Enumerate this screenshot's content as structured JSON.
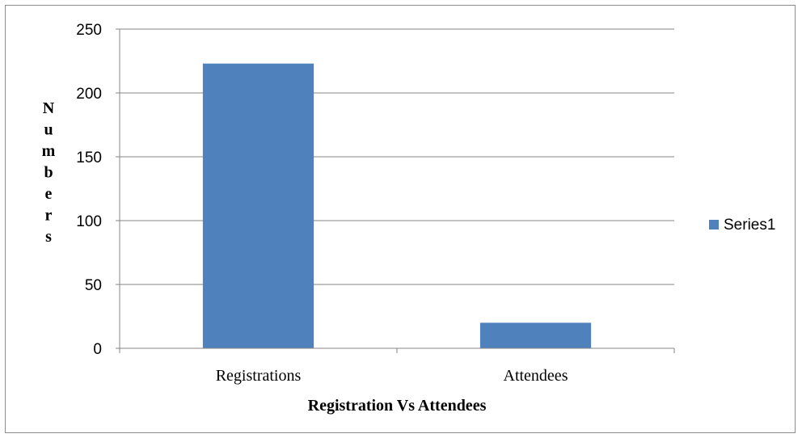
{
  "chart_data": {
    "type": "bar",
    "categories": [
      "Registrations",
      "Attendees"
    ],
    "series": [
      {
        "name": "Series1",
        "values": [
          223,
          20
        ],
        "color": "#4f81bd"
      }
    ],
    "xlabel": "Registration Vs Attendees",
    "ylabel": "Numbers",
    "ylim": [
      0,
      250
    ],
    "yticks": [
      0,
      50,
      100,
      150,
      200,
      250
    ],
    "grid": true,
    "legend_position": "right"
  }
}
